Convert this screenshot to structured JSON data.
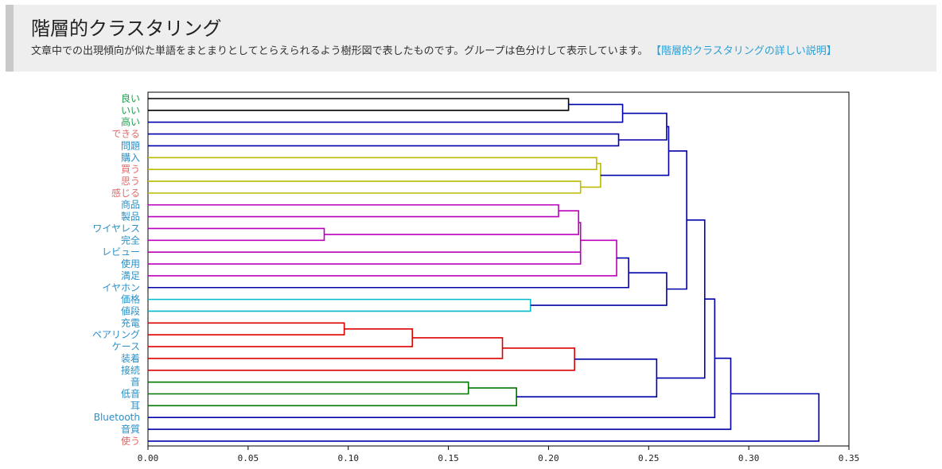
{
  "header": {
    "title": "階層的クラスタリング",
    "description": "文章中での出現傾向が似た単語をまとまりとしてとらえられるよう樹形図で表したものです。グループは色分けして表示しています。",
    "link_text": "【階層的クラスタリングの詳しい説明】"
  },
  "colors": {
    "adjective": "#1f9e4a",
    "noun": "#2b8fc6",
    "verb": "#e06b6b",
    "base_link": "#0000aa"
  },
  "chart_data": {
    "type": "dendrogram",
    "xlim": [
      0,
      0.35
    ],
    "xticks": [
      "0.00",
      "0.05",
      "0.10",
      "0.15",
      "0.20",
      "0.25",
      "0.30",
      "0.35"
    ],
    "leaves": [
      {
        "label": "良い",
        "pos": "adjective"
      },
      {
        "label": "いい",
        "pos": "adjective"
      },
      {
        "label": "高い",
        "pos": "adjective"
      },
      {
        "label": "できる",
        "pos": "verb"
      },
      {
        "label": "問題",
        "pos": "noun"
      },
      {
        "label": "購入",
        "pos": "noun"
      },
      {
        "label": "買う",
        "pos": "verb"
      },
      {
        "label": "思う",
        "pos": "verb"
      },
      {
        "label": "感じる",
        "pos": "verb"
      },
      {
        "label": "商品",
        "pos": "noun"
      },
      {
        "label": "製品",
        "pos": "noun"
      },
      {
        "label": "ワイヤレス",
        "pos": "noun"
      },
      {
        "label": "完全",
        "pos": "noun"
      },
      {
        "label": "レビュー",
        "pos": "noun"
      },
      {
        "label": "使用",
        "pos": "noun"
      },
      {
        "label": "満足",
        "pos": "noun"
      },
      {
        "label": "イヤホン",
        "pos": "noun"
      },
      {
        "label": "価格",
        "pos": "noun"
      },
      {
        "label": "値段",
        "pos": "noun"
      },
      {
        "label": "充電",
        "pos": "noun"
      },
      {
        "label": "ペアリング",
        "pos": "noun"
      },
      {
        "label": "ケース",
        "pos": "noun"
      },
      {
        "label": "装着",
        "pos": "noun"
      },
      {
        "label": "接続",
        "pos": "noun"
      },
      {
        "label": "音",
        "pos": "noun"
      },
      {
        "label": "低音",
        "pos": "noun"
      },
      {
        "label": "耳",
        "pos": "noun"
      },
      {
        "label": "Bluetooth",
        "pos": "noun"
      },
      {
        "label": "音質",
        "pos": "noun"
      },
      {
        "label": "使う",
        "pos": "verb"
      }
    ],
    "merges": [
      {
        "id": "A",
        "a": 0,
        "b": 1,
        "h": 0.21,
        "color": "#000000"
      },
      {
        "id": "B",
        "a": "A",
        "b": 2,
        "h": 0.237,
        "color": "#0000aa"
      },
      {
        "id": "C",
        "a": 3,
        "b": 4,
        "h": 0.235,
        "color": "#0000aa"
      },
      {
        "id": "D",
        "a": "B",
        "b": "C",
        "h": 0.259,
        "color": "#0000aa"
      },
      {
        "id": "E",
        "a": 5,
        "b": 6,
        "h": 0.224,
        "color": "#bbbb00"
      },
      {
        "id": "F",
        "a": 7,
        "b": 8,
        "h": 0.216,
        "color": "#bbbb00"
      },
      {
        "id": "G",
        "a": "E",
        "b": "F",
        "h": 0.226,
        "color": "#bbbb00"
      },
      {
        "id": "H",
        "a": "D",
        "b": "G",
        "h": 0.26,
        "color": "#0000aa"
      },
      {
        "id": "I",
        "a": 9,
        "b": 10,
        "h": 0.205,
        "color": "#bb00bb"
      },
      {
        "id": "J",
        "a": 11,
        "b": 12,
        "h": 0.088,
        "color": "#bb00bb"
      },
      {
        "id": "K",
        "a": "I",
        "b": "J",
        "h": 0.215,
        "color": "#bb00bb"
      },
      {
        "id": "L",
        "a": 13,
        "b": 14,
        "h": 0.216,
        "color": "#bb00bb"
      },
      {
        "id": "M",
        "a": "K",
        "b": "L",
        "h": 0.216,
        "color": "#bb00bb"
      },
      {
        "id": "N",
        "a": "M",
        "b": 15,
        "h": 0.234,
        "color": "#bb00bb"
      },
      {
        "id": "O",
        "a": "N",
        "b": 16,
        "h": 0.24,
        "color": "#0000aa"
      },
      {
        "id": "P",
        "a": 17,
        "b": 18,
        "h": 0.191,
        "color": "#00bbcc"
      },
      {
        "id": "Q",
        "a": "O",
        "b": "P",
        "h": 0.259,
        "color": "#0000aa"
      },
      {
        "id": "R",
        "a": "H",
        "b": "Q",
        "h": 0.269,
        "color": "#0000aa"
      },
      {
        "id": "S",
        "a": 19,
        "b": 20,
        "h": 0.098,
        "color": "#dd0000"
      },
      {
        "id": "T",
        "a": "S",
        "b": 21,
        "h": 0.132,
        "color": "#dd0000"
      },
      {
        "id": "U",
        "a": "T",
        "b": 22,
        "h": 0.177,
        "color": "#dd0000"
      },
      {
        "id": "V",
        "a": "U",
        "b": 23,
        "h": 0.213,
        "color": "#dd0000"
      },
      {
        "id": "W",
        "a": 24,
        "b": 25,
        "h": 0.16,
        "color": "#007700"
      },
      {
        "id": "X",
        "a": "W",
        "b": 26,
        "h": 0.184,
        "color": "#007700"
      },
      {
        "id": "Y",
        "a": "V",
        "b": "X",
        "h": 0.254,
        "color": "#0000aa"
      },
      {
        "id": "Z",
        "a": "R",
        "b": "Y",
        "h": 0.278,
        "color": "#0000aa"
      },
      {
        "id": "AA",
        "a": "Z",
        "b": 27,
        "h": 0.283,
        "color": "#0000aa"
      },
      {
        "id": "AB",
        "a": "AA",
        "b": 28,
        "h": 0.291,
        "color": "#0000aa"
      },
      {
        "id": "AC",
        "a": "AB",
        "b": 29,
        "h": 0.335,
        "color": "#0000aa"
      }
    ]
  }
}
